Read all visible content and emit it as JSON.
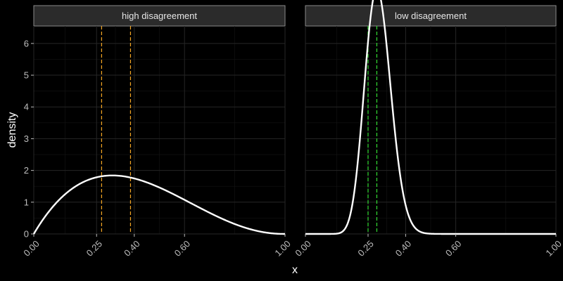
{
  "chart_data": {
    "type": "line",
    "xlabel": "x",
    "ylabel": "density",
    "xlim": [
      0,
      1
    ],
    "ylim": [
      0,
      6.55
    ],
    "y_ticks": [
      0,
      1,
      2,
      3,
      4,
      5,
      6
    ],
    "y_tick_labels": [
      "0",
      "1",
      "2",
      "3",
      "4",
      "5",
      "6"
    ],
    "grid": true,
    "facets": [
      {
        "title": "high disagreement",
        "x_ticks": [
          0,
          0.25,
          0.4,
          0.6,
          1
        ],
        "x_tick_labels": [
          "0.00",
          "0.25",
          "0.40",
          "0.60",
          "1.00"
        ],
        "density_curve": {
          "distribution": "beta",
          "alpha": 2,
          "beta": 3.2,
          "color": "#ffffff"
        },
        "vlines": [
          {
            "x": 0.27,
            "color": "#f5a623"
          },
          {
            "x": 0.385,
            "color": "#f5a623"
          }
        ]
      },
      {
        "title": "low disagreement",
        "x_ticks": [
          0,
          0.25,
          0.4,
          0.6,
          1
        ],
        "x_tick_labels": [
          "0.00",
          "0.25",
          "0.40",
          "0.60",
          "1.00"
        ],
        "density_curve": {
          "distribution": "beta",
          "alpha": 22.4,
          "beta": 54.6,
          "color": "#ffffff"
        },
        "vlines": [
          {
            "x": 0.25,
            "color": "#33dd33"
          },
          {
            "x": 0.285,
            "color": "#33dd33"
          }
        ]
      }
    ]
  }
}
